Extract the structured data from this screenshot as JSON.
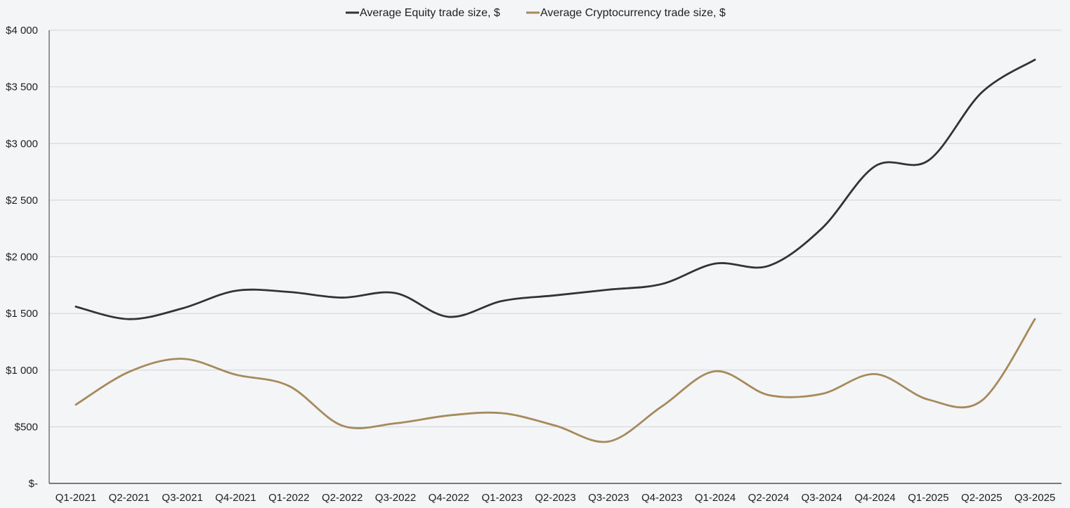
{
  "chart_data": {
    "type": "line",
    "title": "",
    "xlabel": "",
    "ylabel": "",
    "categories": [
      "Q1-2021",
      "Q2-2021",
      "Q3-2021",
      "Q4-2021",
      "Q1-2022",
      "Q2-2022",
      "Q3-2022",
      "Q4-2022",
      "Q1-2023",
      "Q2-2023",
      "Q3-2023",
      "Q4-2023",
      "Q1-2024",
      "Q2-2024",
      "Q3-2024",
      "Q4-2024",
      "Q1-2025",
      "Q2-2025",
      "Q3-2025"
    ],
    "series": [
      {
        "name": "Average Equity trade size, $",
        "color": "#333333",
        "values": [
          1560,
          1450,
          1545,
          1700,
          1690,
          1640,
          1680,
          1470,
          1610,
          1660,
          1710,
          1760,
          1940,
          1920,
          2250,
          2800,
          2850,
          3450,
          3740
        ]
      },
      {
        "name": "Average Cryptocurrency trade size, $",
        "color": "#a68a5c",
        "values": [
          695,
          985,
          1100,
          960,
          860,
          510,
          530,
          600,
          620,
          510,
          370,
          680,
          990,
          780,
          790,
          965,
          740,
          730,
          1450
        ]
      }
    ],
    "ylim": [
      0,
      4000
    ],
    "yticks": [
      0,
      500,
      1000,
      1500,
      2000,
      2500,
      3000,
      3500,
      4000
    ],
    "ytick_labels": [
      "$-",
      "$500",
      "$1 000",
      "$1 500",
      "$2 000",
      "$2 500",
      "$3 000",
      "$3 500",
      "$4 000"
    ],
    "grid": "horizontal",
    "legend": "top-center",
    "background": "#f3f5f7",
    "grid_color": "#d2d5d8",
    "axis_color": "#333333"
  }
}
